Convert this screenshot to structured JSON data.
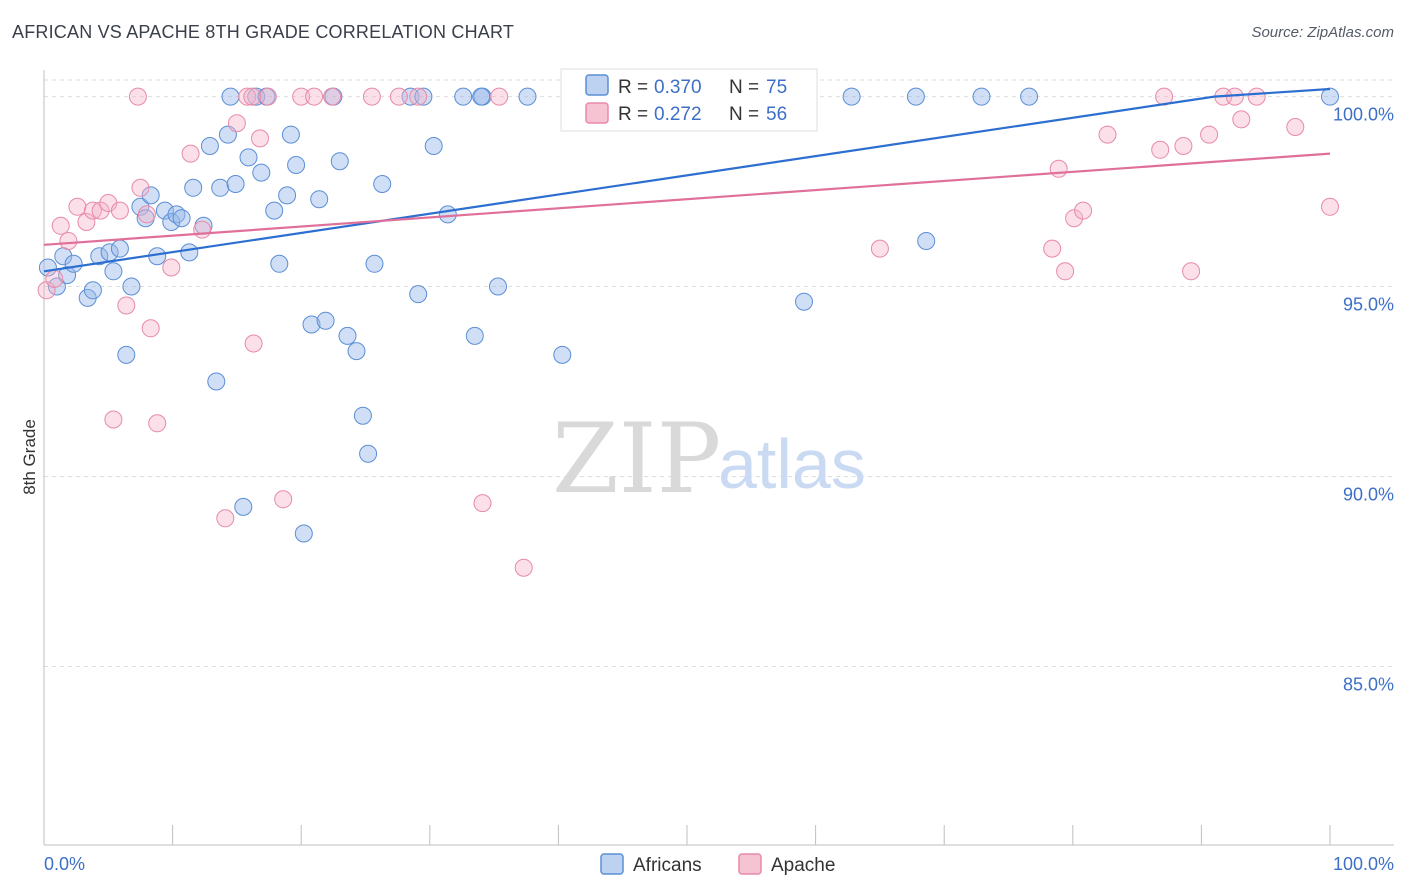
{
  "title": "AFRICAN VS APACHE 8TH GRADE CORRELATION CHART",
  "source": "Source: ZipAtlas.com",
  "watermark": {
    "zip": "ZIP",
    "atlas": "atlas"
  },
  "colors": {
    "africans": "#5b8fd6",
    "apache": "#e88aa8",
    "africans_line": "#2d6fd0",
    "apache_line": "#e0709a",
    "axis_text": "#3d6fc7",
    "grid": "#dddddd"
  },
  "legend": {
    "rows": [
      {
        "r_label": "R =",
        "r_value": "0.370",
        "n_label": "N =",
        "n_value": "75"
      },
      {
        "r_label": "R =",
        "r_value": "0.272",
        "n_label": "N =",
        "n_value": "56"
      }
    ]
  },
  "bottom_legend": [
    "Africans",
    "Apache"
  ],
  "chart_data": {
    "type": "scatter",
    "title": "AFRICAN VS APACHE 8TH GRADE CORRELATION CHART",
    "xlabel": "",
    "ylabel": "8th Grade",
    "xlim": [
      0,
      100
    ],
    "ylim": [
      80.3,
      100.7
    ],
    "x_tick_labels": [
      "0.0%",
      "100.0%"
    ],
    "y_ticks": [
      85,
      90,
      95,
      100
    ],
    "y_tick_labels": [
      "85.0%",
      "90.0%",
      "95.0%",
      "100.0%"
    ],
    "grid": true,
    "legend_position": "top-center",
    "series": [
      {
        "name": "Africans",
        "r": 0.37,
        "n": 75,
        "trend": [
          [
            0,
            95.4
          ],
          [
            91,
            100.0
          ],
          [
            100,
            100.2
          ]
        ],
        "points": [
          [
            0.3,
            95.5
          ],
          [
            1.0,
            95.0
          ],
          [
            1.5,
            95.8
          ],
          [
            1.8,
            95.3
          ],
          [
            2.3,
            95.6
          ],
          [
            3.4,
            94.7
          ],
          [
            3.8,
            94.9
          ],
          [
            4.3,
            95.8
          ],
          [
            5.1,
            95.9
          ],
          [
            5.4,
            95.4
          ],
          [
            5.9,
            96.0
          ],
          [
            6.4,
            93.2
          ],
          [
            6.8,
            95.0
          ],
          [
            7.5,
            97.1
          ],
          [
            7.9,
            96.8
          ],
          [
            8.3,
            97.4
          ],
          [
            8.8,
            95.8
          ],
          [
            9.4,
            97.0
          ],
          [
            9.9,
            96.7
          ],
          [
            10.3,
            96.9
          ],
          [
            10.7,
            96.8
          ],
          [
            11.3,
            95.9
          ],
          [
            11.6,
            97.6
          ],
          [
            12.4,
            96.6
          ],
          [
            12.9,
            98.7
          ],
          [
            13.4,
            92.5
          ],
          [
            13.7,
            97.6
          ],
          [
            14.3,
            99.0
          ],
          [
            14.9,
            97.7
          ],
          [
            15.5,
            89.2
          ],
          [
            15.9,
            98.4
          ],
          [
            16.5,
            100.0
          ],
          [
            16.9,
            98.0
          ],
          [
            17.3,
            100.0
          ],
          [
            17.9,
            97.0
          ],
          [
            18.3,
            95.6
          ],
          [
            18.9,
            97.4
          ],
          [
            19.2,
            99.0
          ],
          [
            19.6,
            98.2
          ],
          [
            20.2,
            88.5
          ],
          [
            20.8,
            94.0
          ],
          [
            21.4,
            97.3
          ],
          [
            21.9,
            94.1
          ],
          [
            22.5,
            100.0
          ],
          [
            23.0,
            98.3
          ],
          [
            23.6,
            93.7
          ],
          [
            24.3,
            93.3
          ],
          [
            24.8,
            91.6
          ],
          [
            25.2,
            90.6
          ],
          [
            25.7,
            95.6
          ],
          [
            26.3,
            97.7
          ],
          [
            28.5,
            100.0
          ],
          [
            29.1,
            94.8
          ],
          [
            29.5,
            100.0
          ],
          [
            30.3,
            98.7
          ],
          [
            31.4,
            96.9
          ],
          [
            32.6,
            100.0
          ],
          [
            33.5,
            93.7
          ],
          [
            34.1,
            100.0
          ],
          [
            35.3,
            95.0
          ],
          [
            37.6,
            100.0
          ],
          [
            40.3,
            93.2
          ],
          [
            53.5,
            100.0
          ],
          [
            59.1,
            94.6
          ],
          [
            62.8,
            100.0
          ],
          [
            67.8,
            100.0
          ],
          [
            68.6,
            96.2
          ],
          [
            72.9,
            100.0
          ],
          [
            76.6,
            100.0
          ],
          [
            100.0,
            100.0
          ],
          [
            55.0,
            100.0
          ],
          [
            43.0,
            100.0
          ],
          [
            34.0,
            100.0
          ],
          [
            56.5,
            100.0
          ],
          [
            14.5,
            100.0
          ]
        ]
      },
      {
        "name": "Apache",
        "r": 0.272,
        "n": 56,
        "trend": [
          [
            0,
            96.1
          ],
          [
            100,
            98.5
          ]
        ],
        "points": [
          [
            0.2,
            94.9
          ],
          [
            0.8,
            95.2
          ],
          [
            1.3,
            96.6
          ],
          [
            1.9,
            96.2
          ],
          [
            2.6,
            97.1
          ],
          [
            3.3,
            96.7
          ],
          [
            3.8,
            97.0
          ],
          [
            4.4,
            97.0
          ],
          [
            5.0,
            97.2
          ],
          [
            5.4,
            91.5
          ],
          [
            5.9,
            97.0
          ],
          [
            6.4,
            94.5
          ],
          [
            7.3,
            100.0
          ],
          [
            7.5,
            97.6
          ],
          [
            8.0,
            96.9
          ],
          [
            8.3,
            93.9
          ],
          [
            8.8,
            91.4
          ],
          [
            9.9,
            95.5
          ],
          [
            11.4,
            98.5
          ],
          [
            12.3,
            96.5
          ],
          [
            14.1,
            88.9
          ],
          [
            15.0,
            99.3
          ],
          [
            15.8,
            100.0
          ],
          [
            16.3,
            93.5
          ],
          [
            16.8,
            98.9
          ],
          [
            17.4,
            100.0
          ],
          [
            18.6,
            89.4
          ],
          [
            20.0,
            100.0
          ],
          [
            22.4,
            100.0
          ],
          [
            25.5,
            100.0
          ],
          [
            27.6,
            100.0
          ],
          [
            29.1,
            100.0
          ],
          [
            34.1,
            89.3
          ],
          [
            35.4,
            100.0
          ],
          [
            37.3,
            87.6
          ],
          [
            43.3,
            100.0
          ],
          [
            65.0,
            96.0
          ],
          [
            78.4,
            96.0
          ],
          [
            78.9,
            98.1
          ],
          [
            79.4,
            95.4
          ],
          [
            80.1,
            96.8
          ],
          [
            80.8,
            97.0
          ],
          [
            82.7,
            99.0
          ],
          [
            86.8,
            98.6
          ],
          [
            87.1,
            100.0
          ],
          [
            88.6,
            98.7
          ],
          [
            89.2,
            95.4
          ],
          [
            90.6,
            99.0
          ],
          [
            91.7,
            100.0
          ],
          [
            92.6,
            100.0
          ],
          [
            93.1,
            99.4
          ],
          [
            94.3,
            100.0
          ],
          [
            97.3,
            99.2
          ],
          [
            100.0,
            97.1
          ],
          [
            16.2,
            100.0
          ],
          [
            21.0,
            100.0
          ]
        ]
      }
    ]
  }
}
